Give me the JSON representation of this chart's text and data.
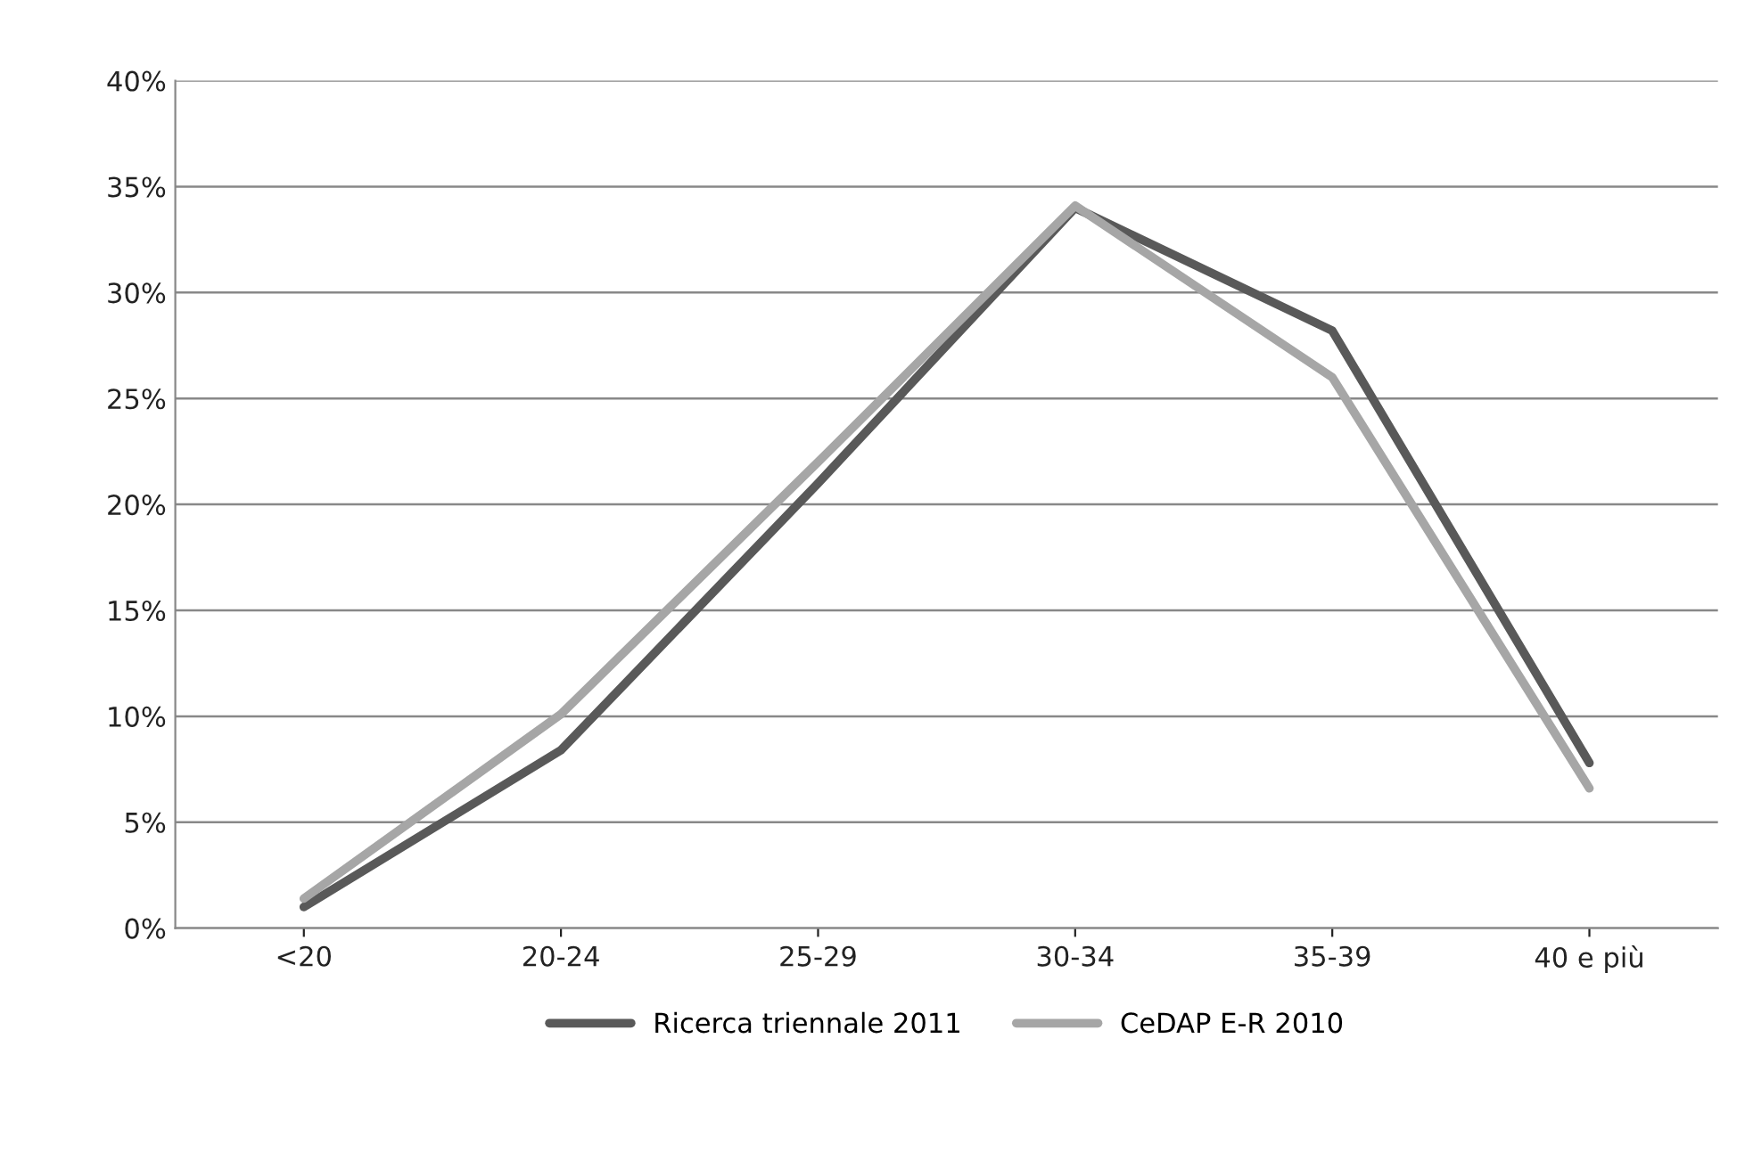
{
  "chart_data": {
    "type": "line",
    "categories": [
      "<20",
      "20-24",
      "25-29",
      "30-34",
      "35-39",
      "40 e più"
    ],
    "series": [
      {
        "name": "Ricerca triennale 2011",
        "color": "#595959",
        "values": [
          1.0,
          8.4,
          21,
          34.0,
          28.2,
          7.8
        ]
      },
      {
        "name": "CeDAP E-R 2010",
        "color": "#a6a6a6",
        "values": [
          1.4,
          10.1,
          22,
          34.1,
          26.0,
          6.6
        ]
      }
    ],
    "ylim": [
      0,
      40
    ],
    "yticks": [
      {
        "value": 0,
        "label": "0%"
      },
      {
        "value": 5,
        "label": "5%"
      },
      {
        "value": 10,
        "label": "10%"
      },
      {
        "value": 15,
        "label": "15%"
      },
      {
        "value": 20,
        "label": "20%"
      },
      {
        "value": 25,
        "label": "25%"
      },
      {
        "value": 30,
        "label": "30%"
      },
      {
        "value": 35,
        "label": "35%"
      },
      {
        "value": 40,
        "label": "40%"
      }
    ],
    "grid": "y",
    "legend": "bottom",
    "marker": "none",
    "line_style": "solid"
  }
}
